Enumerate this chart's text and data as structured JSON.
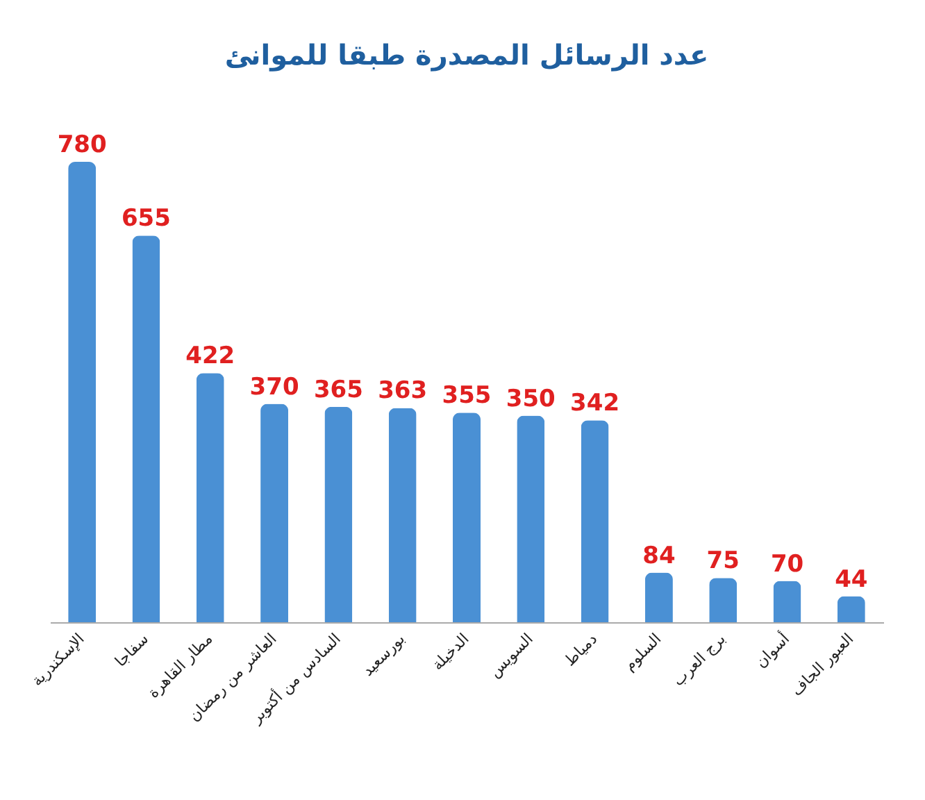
{
  "chart_data": {
    "type": "bar",
    "title": "عدد الرسائل المصدرة طبقا للموانئ",
    "categories": [
      "الإسكندرية",
      "سفاجا",
      "مطار القاهرة",
      "العاشر من رمضان",
      "السادس من أكتوبر",
      "بورسعيد",
      "الدخيلة",
      "السويس",
      "دمياط",
      "السلوم",
      "برج العرب",
      "أسوان",
      "العبور الجاف"
    ],
    "values": [
      780,
      655,
      422,
      370,
      365,
      363,
      355,
      350,
      342,
      84,
      75,
      70,
      44
    ],
    "color": "#4a90d4",
    "data_labels": true
  }
}
